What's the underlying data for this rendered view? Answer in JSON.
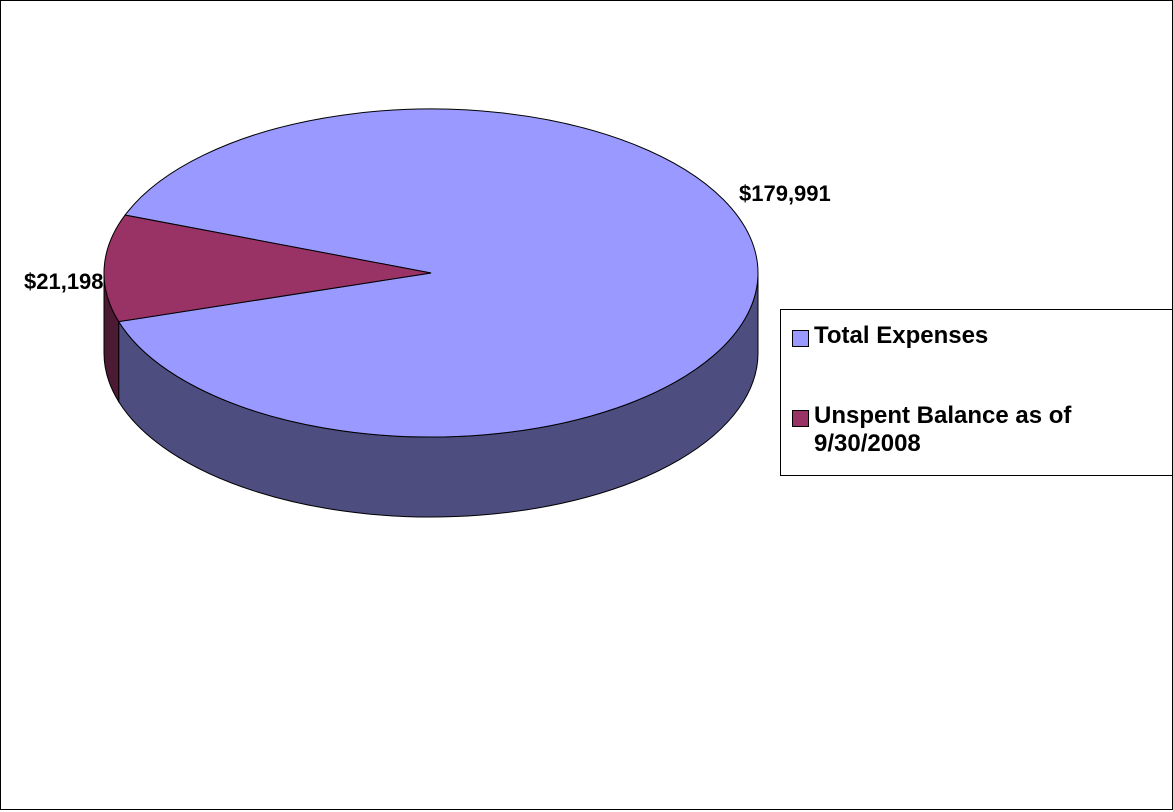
{
  "chart_data": {
    "type": "pie",
    "style": "3d",
    "slices": [
      {
        "label": "Total Expenses",
        "value": 179991,
        "data_label": "$179,991",
        "color": "#9999FF",
        "side_color": "#4D4D80"
      },
      {
        "label": "Unspent Balance as of 9/30/2008",
        "value": 21198,
        "data_label": "$21,198",
        "color": "#993366",
        "side_color": "#4C1A33"
      }
    ],
    "legend": {
      "placement": "right",
      "entries": [
        "Total Expenses",
        "Unspent Balance as of 9/30/2008"
      ]
    },
    "title": ""
  }
}
